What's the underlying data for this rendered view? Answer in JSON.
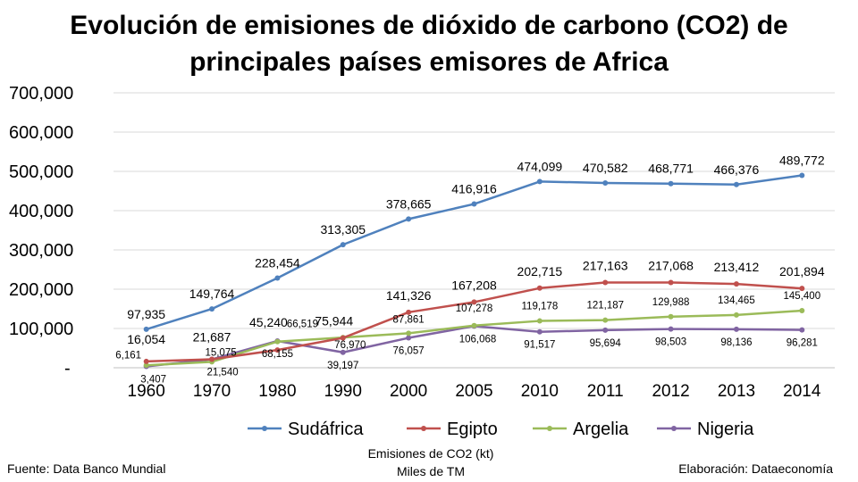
{
  "chart_data": {
    "type": "line",
    "title_lines": [
      "Evolución de emisiones de dióxido de carbono (CO2) de",
      "principales países emisores de Africa"
    ],
    "categories": [
      "1960",
      "1970",
      "1980",
      "1990",
      "2000",
      "2005",
      "2010",
      "2011",
      "2012",
      "2013",
      "2014"
    ],
    "y_ticks": [
      "-",
      "100,000",
      "200,000",
      "300,000",
      "400,000",
      "500,000",
      "600,000",
      "700,000"
    ],
    "ylim": [
      0,
      700000
    ],
    "grid": "horizontal",
    "legend_position": "bottom",
    "xlabel_lines": [
      "Emisiones de CO2 (kt)",
      "Miles de TM"
    ],
    "series": [
      {
        "name": "Sudáfrica",
        "color": "#4F81BD",
        "values": [
          97935,
          149764,
          228454,
          313305,
          378665,
          416916,
          474099,
          470582,
          468771,
          466376,
          489772
        ],
        "labels": [
          "97,935",
          "149,764",
          "228,454",
          "313,305",
          "378,665",
          "416,916",
          "474,099",
          "470,582",
          "468,771",
          "466,376",
          "489,772"
        ]
      },
      {
        "name": "Egipto",
        "color": "#C0504D",
        "values": [
          16054,
          21687,
          45240,
          75944,
          141326,
          167208,
          202715,
          217163,
          217068,
          213412,
          201894
        ],
        "labels": [
          "16,054",
          "21,687",
          "45,240",
          "75,944",
          "141,326",
          "167,208",
          "202,715",
          "217,163",
          "217,068",
          "213,412",
          "201,894"
        ]
      },
      {
        "name": "Argelia",
        "color": "#9BBB59",
        "values": [
          6161,
          15075,
          66519,
          76970,
          87861,
          107278,
          119178,
          121187,
          129988,
          134465,
          145400
        ],
        "labels": [
          "6,161",
          "15,075",
          "66,519",
          "76,970",
          "87,861",
          "107,278",
          "119,178",
          "121,187",
          "129,988",
          "134,465",
          "145,400"
        ]
      },
      {
        "name": "Nigeria",
        "color": "#8064A2",
        "values": [
          3407,
          21540,
          68155,
          39197,
          76057,
          106068,
          91517,
          95694,
          98503,
          98136,
          96281
        ],
        "labels": [
          "3,407",
          "21,540",
          "68,155",
          "39,197",
          "76,057",
          "106,068",
          "91,517",
          "95,694",
          "98,503",
          "98,136",
          "96,281"
        ]
      }
    ]
  },
  "footer": {
    "source": "Fuente: Data Banco Mundial",
    "credit": "Elaboración: Dataeconomía"
  }
}
